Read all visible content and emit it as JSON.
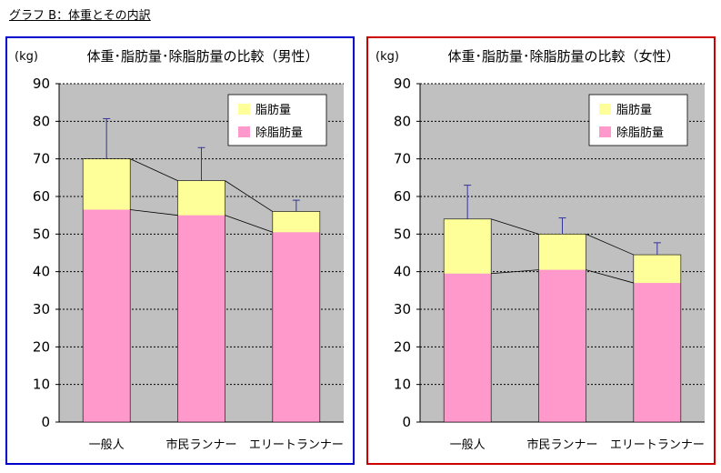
{
  "caption": "グラフ B：体重とその内訳",
  "colors": {
    "lean": "#ff99cc",
    "fat": "#ffff99",
    "plot_bg": "#c0c0c0",
    "error_bar": "#333399",
    "male_border": "#0000cc",
    "female_border": "#cc0000"
  },
  "chart_data": [
    {
      "type": "bar",
      "stacked": true,
      "title": "体重･脂肪量･除脂肪量の比較（男性）",
      "unit_label": "(kg)",
      "categories": [
        "一般人",
        "市民ランナー",
        "エリートランナー"
      ],
      "series": [
        {
          "name": "除脂肪量",
          "values": [
            56.5,
            55,
            50.5
          ]
        },
        {
          "name": "脂肪量",
          "values": [
            13.5,
            9.2,
            5.5
          ]
        }
      ],
      "totals": [
        70,
        64.2,
        56
      ],
      "error_upper": [
        80.7,
        73,
        59
      ],
      "ylim": [
        0,
        90
      ],
      "yticks": [
        "0",
        "10",
        "20",
        "30",
        "40",
        "50",
        "60",
        "70",
        "80",
        "90"
      ],
      "legend": [
        "脂肪量",
        "除脂肪量"
      ],
      "legend_position": "top-right",
      "grid": true
    },
    {
      "type": "bar",
      "stacked": true,
      "title": "体重･脂肪量･除脂肪量の比較（女性）",
      "unit_label": "(kg)",
      "categories": [
        "一般人",
        "市民ランナー",
        "エリートランナー"
      ],
      "series": [
        {
          "name": "除脂肪量",
          "values": [
            39.5,
            40.5,
            37
          ]
        },
        {
          "name": "脂肪量",
          "values": [
            14.5,
            9.5,
            7.5
          ]
        }
      ],
      "totals": [
        54,
        50,
        44.5
      ],
      "error_upper": [
        63,
        54.3,
        47.7
      ],
      "ylim": [
        0,
        90
      ],
      "yticks": [
        "0",
        "10",
        "20",
        "30",
        "40",
        "50",
        "60",
        "70",
        "80",
        "90"
      ],
      "legend": [
        "脂肪量",
        "除脂肪量"
      ],
      "legend_position": "top-right",
      "grid": true
    }
  ]
}
